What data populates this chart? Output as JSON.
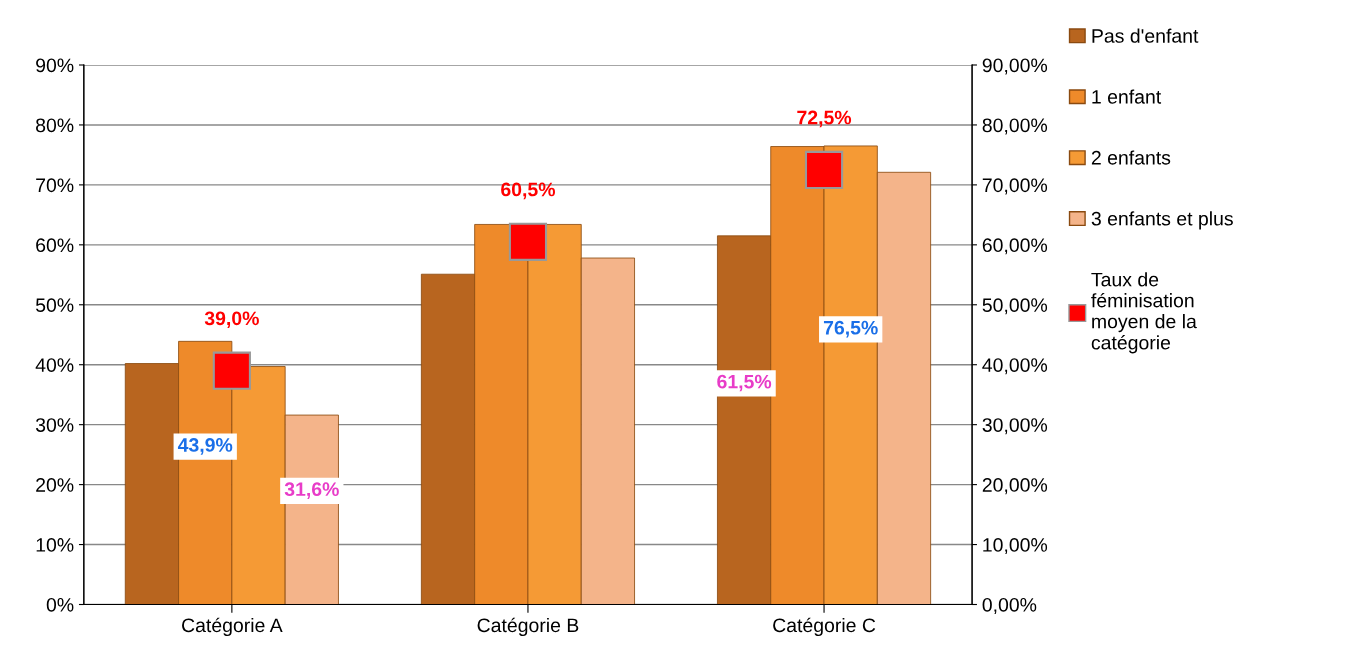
{
  "chart_data": {
    "type": "bar",
    "categories": [
      "Catégorie A",
      "Catégorie B",
      "Catégorie C"
    ],
    "series": [
      {
        "name": "Pas d'enfant",
        "color": "#b8651f",
        "values": [
          40.2,
          55.1,
          61.5
        ],
        "value_labels": [
          null,
          null,
          "61,5%"
        ]
      },
      {
        "name": "1 enfant",
        "color": "#ee8a2a",
        "values": [
          43.9,
          63.4,
          76.4
        ],
        "value_labels": [
          "43,9%",
          null,
          null
        ]
      },
      {
        "name": "2 enfants",
        "color": "#f59a35",
        "values": [
          39.7,
          63.4,
          76.5
        ],
        "value_labels": [
          null,
          null,
          "76,5%"
        ]
      },
      {
        "name": "3 enfants et plus",
        "color": "#f4b48a",
        "values": [
          31.6,
          57.8,
          72.1
        ],
        "value_labels": [
          "31,6%",
          null,
          null
        ]
      },
      {
        "name": "Taux de\nféminisation\nmoyen de la\ncatégorie",
        "type": "scatter",
        "marker": "square",
        "color": "#ff0000",
        "values": [
          39.0,
          60.5,
          72.5
        ],
        "value_labels": [
          "39,0%",
          "60,5%",
          "72,5%"
        ]
      }
    ],
    "ylim": [
      0,
      90
    ],
    "yticks": [
      {
        "value": 0,
        "label": "0%"
      },
      {
        "value": 10,
        "label": "10%"
      },
      {
        "value": 20,
        "label": "20%"
      },
      {
        "value": 30,
        "label": "30%"
      },
      {
        "value": 40,
        "label": "40%"
      },
      {
        "value": 50,
        "label": "50%"
      },
      {
        "value": 60,
        "label": "60%"
      },
      {
        "value": 70,
        "label": "70%"
      },
      {
        "value": 80,
        "label": "80%"
      },
      {
        "value": 90,
        "label": "90%"
      }
    ],
    "y2lim": [
      0,
      90
    ],
    "y2ticks": [
      {
        "value": 0,
        "label": "0,00%"
      },
      {
        "value": 10,
        "label": "10,00%"
      },
      {
        "value": 20,
        "label": "20,00%"
      },
      {
        "value": 30,
        "label": "30,00%"
      },
      {
        "value": 40,
        "label": "40,00%"
      },
      {
        "value": 50,
        "label": "50,00%"
      },
      {
        "value": 60,
        "label": "60,00%"
      },
      {
        "value": 70,
        "label": "70,00%"
      },
      {
        "value": 80,
        "label": "80,00%"
      },
      {
        "value": 90,
        "label": "90,00%"
      }
    ],
    "grid": "y",
    "legend": "right"
  }
}
